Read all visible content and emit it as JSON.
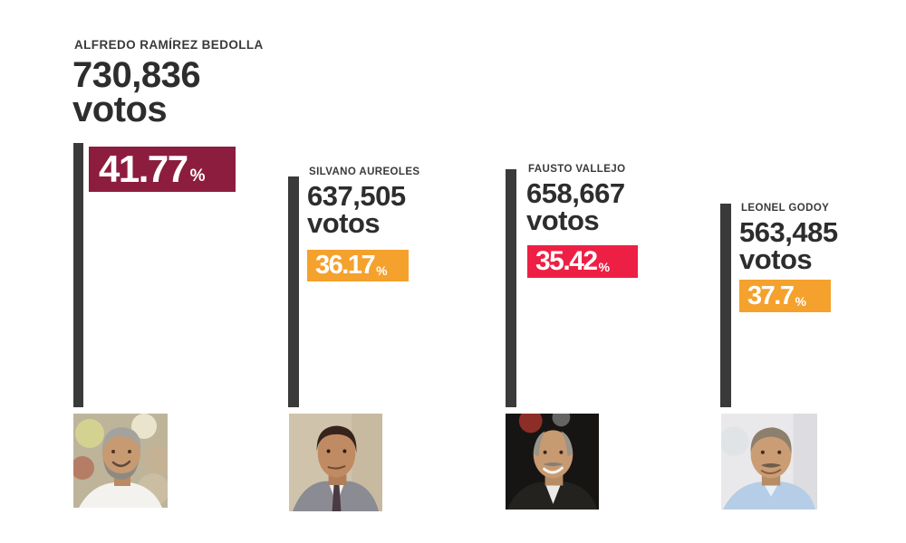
{
  "chart_data": {
    "type": "bar",
    "title": "",
    "xlabel": "",
    "ylabel": "votos",
    "categories": [
      "ALFREDO RAMÍREZ BEDOLLA",
      "SILVANO AUREOLES",
      "FAUSTO VALLEJO",
      "LEONEL GODOY"
    ],
    "values": [
      730836,
      637505,
      658667,
      563485
    ],
    "series": [
      {
        "name": "votos",
        "values": [
          730836,
          637505,
          658667,
          563485
        ]
      },
      {
        "name": "porcentaje",
        "values": [
          41.77,
          36.17,
          35.42,
          37.7
        ]
      }
    ],
    "bar_color": "#3a3a3a",
    "grid": false,
    "legend_position": "none",
    "layout_hint": "vertical bars bottom-aligned, labels and percentage badges beside each bar, portrait photo under each bar"
  },
  "candidates": [
    {
      "name": "ALFREDO RAMÍREZ BEDOLLA",
      "votes": "730,836",
      "votes_label": "votos",
      "pct": "41.77",
      "pct_symbol": "%",
      "badge_color": "#8c1d3e"
    },
    {
      "name": "SILVANO AUREOLES",
      "votes": "637,505",
      "votes_label": "votos",
      "pct": "36.17",
      "pct_symbol": "%",
      "badge_color": "#f5a12d"
    },
    {
      "name": "FAUSTO VALLEJO",
      "votes": "658,667",
      "votes_label": "votos",
      "pct": "35.42",
      "pct_symbol": "%",
      "badge_color": "#ee1f44"
    },
    {
      "name": "LEONEL GODOY",
      "votes": "563,485",
      "votes_label": "votos",
      "pct": "37.7",
      "pct_symbol": "%",
      "badge_color": "#f5a12d"
    }
  ],
  "colors": {
    "background": "#ffffff",
    "bar": "#3a3a3a",
    "text_dark": "#2d2d2d",
    "badge_maroon": "#8c1d3e",
    "badge_orange": "#f5a12d",
    "badge_red": "#ee1f44",
    "badge_text": "#ffffff"
  }
}
